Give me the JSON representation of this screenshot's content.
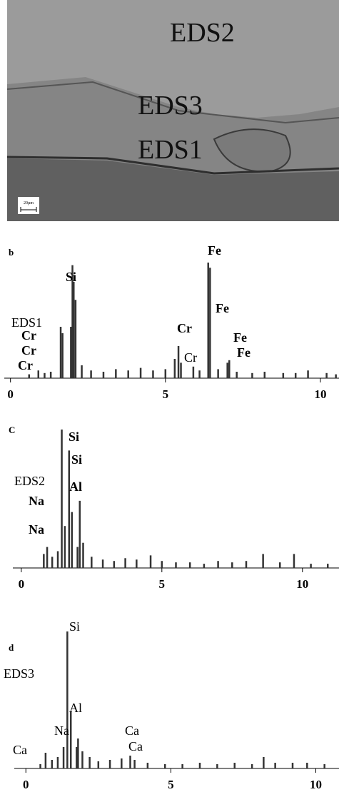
{
  "image": {
    "labels": [
      "EDS2",
      "EDS3",
      "EDS1"
    ],
    "scale_bar": "20µm"
  },
  "chart_data": [
    {
      "type": "spectrum",
      "panel_label": "b",
      "annotations": [
        "EDS1",
        "Cr",
        "Cr",
        "Cr",
        "Si",
        "Cr",
        "Cr",
        "Fe",
        "Fe",
        "Fe",
        "Fe"
      ],
      "x": [
        0.6,
        0.9,
        1.1,
        1.3,
        1.62,
        1.68,
        1.95,
        2.0,
        2.04,
        2.1,
        2.3,
        2.6,
        3.0,
        3.4,
        3.8,
        4.2,
        4.6,
        5.0,
        5.3,
        5.42,
        5.5,
        5.9,
        6.1,
        6.38,
        6.44,
        6.7,
        7.0,
        7.06,
        7.3,
        7.8,
        8.2,
        8.8,
        9.2,
        9.6,
        10.2,
        10.5
      ],
      "values": [
        3,
        6,
        4,
        5,
        40,
        35,
        40,
        88,
        75,
        61,
        10,
        6,
        5,
        7,
        6,
        8,
        6,
        7,
        15,
        25,
        12,
        9,
        6,
        90,
        86,
        7,
        12,
        14,
        5,
        4,
        5,
        4,
        4,
        6,
        4,
        3
      ],
      "xlim": [
        -0.2,
        10.6
      ],
      "xticks": [
        0,
        5,
        10
      ],
      "ylim": [
        0,
        100
      ],
      "color": "#333333"
    },
    {
      "type": "spectrum",
      "panel_label": "C",
      "annotations": [
        "EDS2",
        "Na",
        "Na",
        "Si",
        "Si",
        "Al"
      ],
      "x": [
        0.8,
        0.92,
        1.1,
        1.3,
        1.44,
        1.55,
        1.7,
        1.8,
        2.0,
        2.08,
        2.2,
        2.5,
        2.9,
        3.3,
        3.7,
        4.1,
        4.6,
        5.0,
        5.5,
        6.0,
        6.5,
        7.0,
        7.5,
        8.0,
        8.6,
        9.2,
        9.7,
        10.3,
        10.9
      ],
      "values": [
        10,
        15,
        8,
        12,
        99,
        30,
        84,
        40,
        15,
        48,
        18,
        8,
        6,
        5,
        7,
        6,
        9,
        5,
        4,
        4,
        3,
        5,
        4,
        5,
        10,
        4,
        10,
        3,
        3
      ],
      "xlim": [
        -0.3,
        11.3
      ],
      "xticks": [
        0,
        5,
        10
      ],
      "ylim": [
        0,
        100
      ],
      "color": "#333333"
    },
    {
      "type": "spectrum",
      "panel_label": "d",
      "annotations": [
        "Si",
        "EDS3",
        "Al",
        "Na",
        "Ca",
        "Ca",
        "Ca"
      ],
      "x": [
        0.5,
        0.68,
        0.9,
        1.1,
        1.3,
        1.43,
        1.55,
        1.75,
        1.8,
        1.95,
        2.2,
        2.5,
        2.9,
        3.3,
        3.6,
        3.75,
        4.2,
        4.8,
        5.4,
        6.0,
        6.6,
        7.2,
        7.8,
        8.2,
        8.6,
        9.2,
        9.7,
        10.3
      ],
      "values": [
        3,
        11,
        6,
        8,
        15,
        96,
        40,
        15,
        21,
        12,
        8,
        5,
        6,
        7,
        9,
        6,
        4,
        3,
        3,
        4,
        3,
        4,
        3,
        8,
        4,
        4,
        4,
        3
      ],
      "xlim": [
        -0.4,
        10.8
      ],
      "xticks": [
        0,
        5,
        10
      ],
      "ylim": [
        0,
        100
      ],
      "color": "#333333"
    }
  ]
}
